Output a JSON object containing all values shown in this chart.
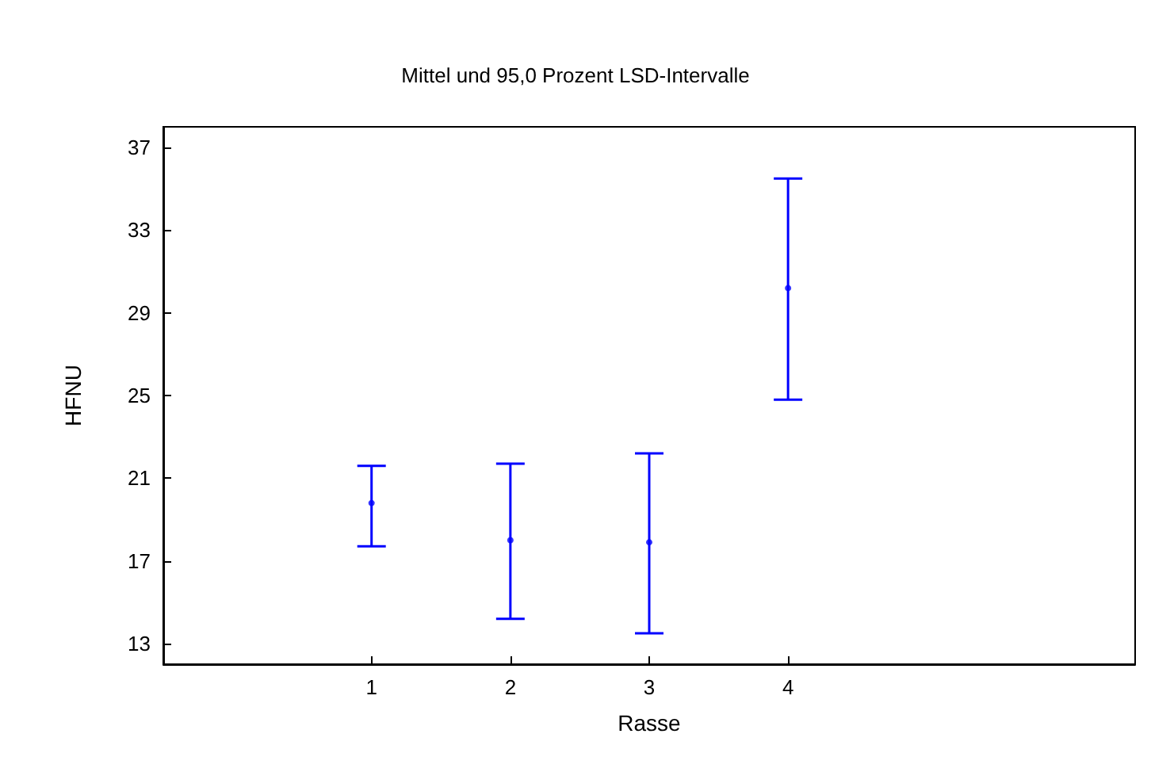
{
  "chart_data": {
    "type": "scatter",
    "title": "Mittel und 95,0 Prozent LSD-Intervalle",
    "xlabel": "Rasse",
    "ylabel": "HFNU",
    "x": [
      1,
      2,
      3,
      4
    ],
    "series": [
      {
        "color": "#0000ff",
        "values": [
          19.8,
          18.0,
          17.9,
          30.2
        ],
        "errors": [
          [
            17.7,
            21.6
          ],
          [
            14.2,
            21.7
          ],
          [
            13.5,
            22.2
          ],
          [
            24.8,
            35.5
          ]
        ]
      }
    ],
    "xlim": [
      -0.5,
      6.5
    ],
    "xticks": [
      1,
      2,
      3,
      4
    ],
    "ylim": [
      12,
      38
    ],
    "yticks": [
      13,
      17,
      21,
      25,
      29,
      33,
      37
    ],
    "grid": false,
    "marker": "circle"
  }
}
